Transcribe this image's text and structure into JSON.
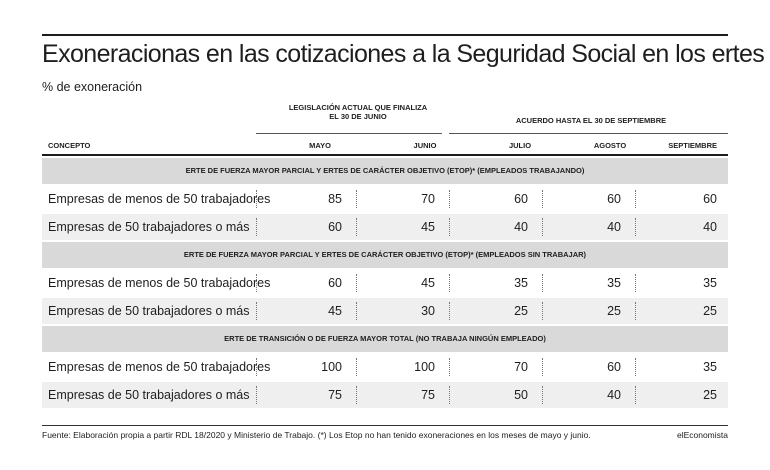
{
  "title": "Exoneracionas en las cotizaciones a la Seguridad Social en los ertes",
  "subtitle": "% de exoneración",
  "groups": {
    "legislacion": "LEGISLACIÓN ACTUAL QUE FINALIZA EL 30 DE JUNIO",
    "acuerdo": "ACUERDO HASTA EL 30 DE SEPTIEMBRE"
  },
  "columns": [
    "CONCEPTO",
    "MAYO",
    "JUNIO",
    "JULIO",
    "AGOSTO",
    "SEPTIEMBRE"
  ],
  "sections": [
    {
      "title": "ERTE DE FUERZA MAYOR PARCIAL Y ERTES DE CARÁCTER OBJETIVO (ETOP)* (EMPLEADOS TRABAJANDO)",
      "rows": [
        {
          "label": "Empresas de menos de 50 trabajadores",
          "values": [
            "85",
            "70",
            "60",
            "60",
            "60"
          ]
        },
        {
          "label": "Empresas de 50 trabajadores o más",
          "values": [
            "60",
            "45",
            "40",
            "40",
            "40"
          ]
        }
      ]
    },
    {
      "title": "ERTE DE FUERZA MAYOR PARCIAL Y ERTES DE CARÁCTER OBJETIVO (ETOP)* (EMPLEADOS SIN TRABAJAR)",
      "rows": [
        {
          "label": "Empresas de menos de 50 trabajadores",
          "values": [
            "60",
            "45",
            "35",
            "35",
            "35"
          ]
        },
        {
          "label": "Empresas de 50 trabajadores o más",
          "values": [
            "45",
            "30",
            "25",
            "25",
            "25"
          ]
        }
      ]
    },
    {
      "title": "ERTE DE TRANSICIÓN O DE FUERZA MAYOR TOTAL (NO TRABAJA NINGÚN EMPLEADO)",
      "rows": [
        {
          "label": "Empresas de menos de 50 trabajadores",
          "values": [
            "100",
            "100",
            "70",
            "60",
            "35"
          ]
        },
        {
          "label": "Empresas de 50 trabajadores o más",
          "values": [
            "75",
            "75",
            "50",
            "40",
            "25"
          ]
        }
      ]
    }
  ],
  "footer": {
    "source": "Fuente: Elaboración propia a partir RDL 18/2020 y Ministerio de Trabajo. (*) Los Etop no han tenido exoneraciones en los meses de mayo y junio.",
    "brand": "elEconomista"
  }
}
